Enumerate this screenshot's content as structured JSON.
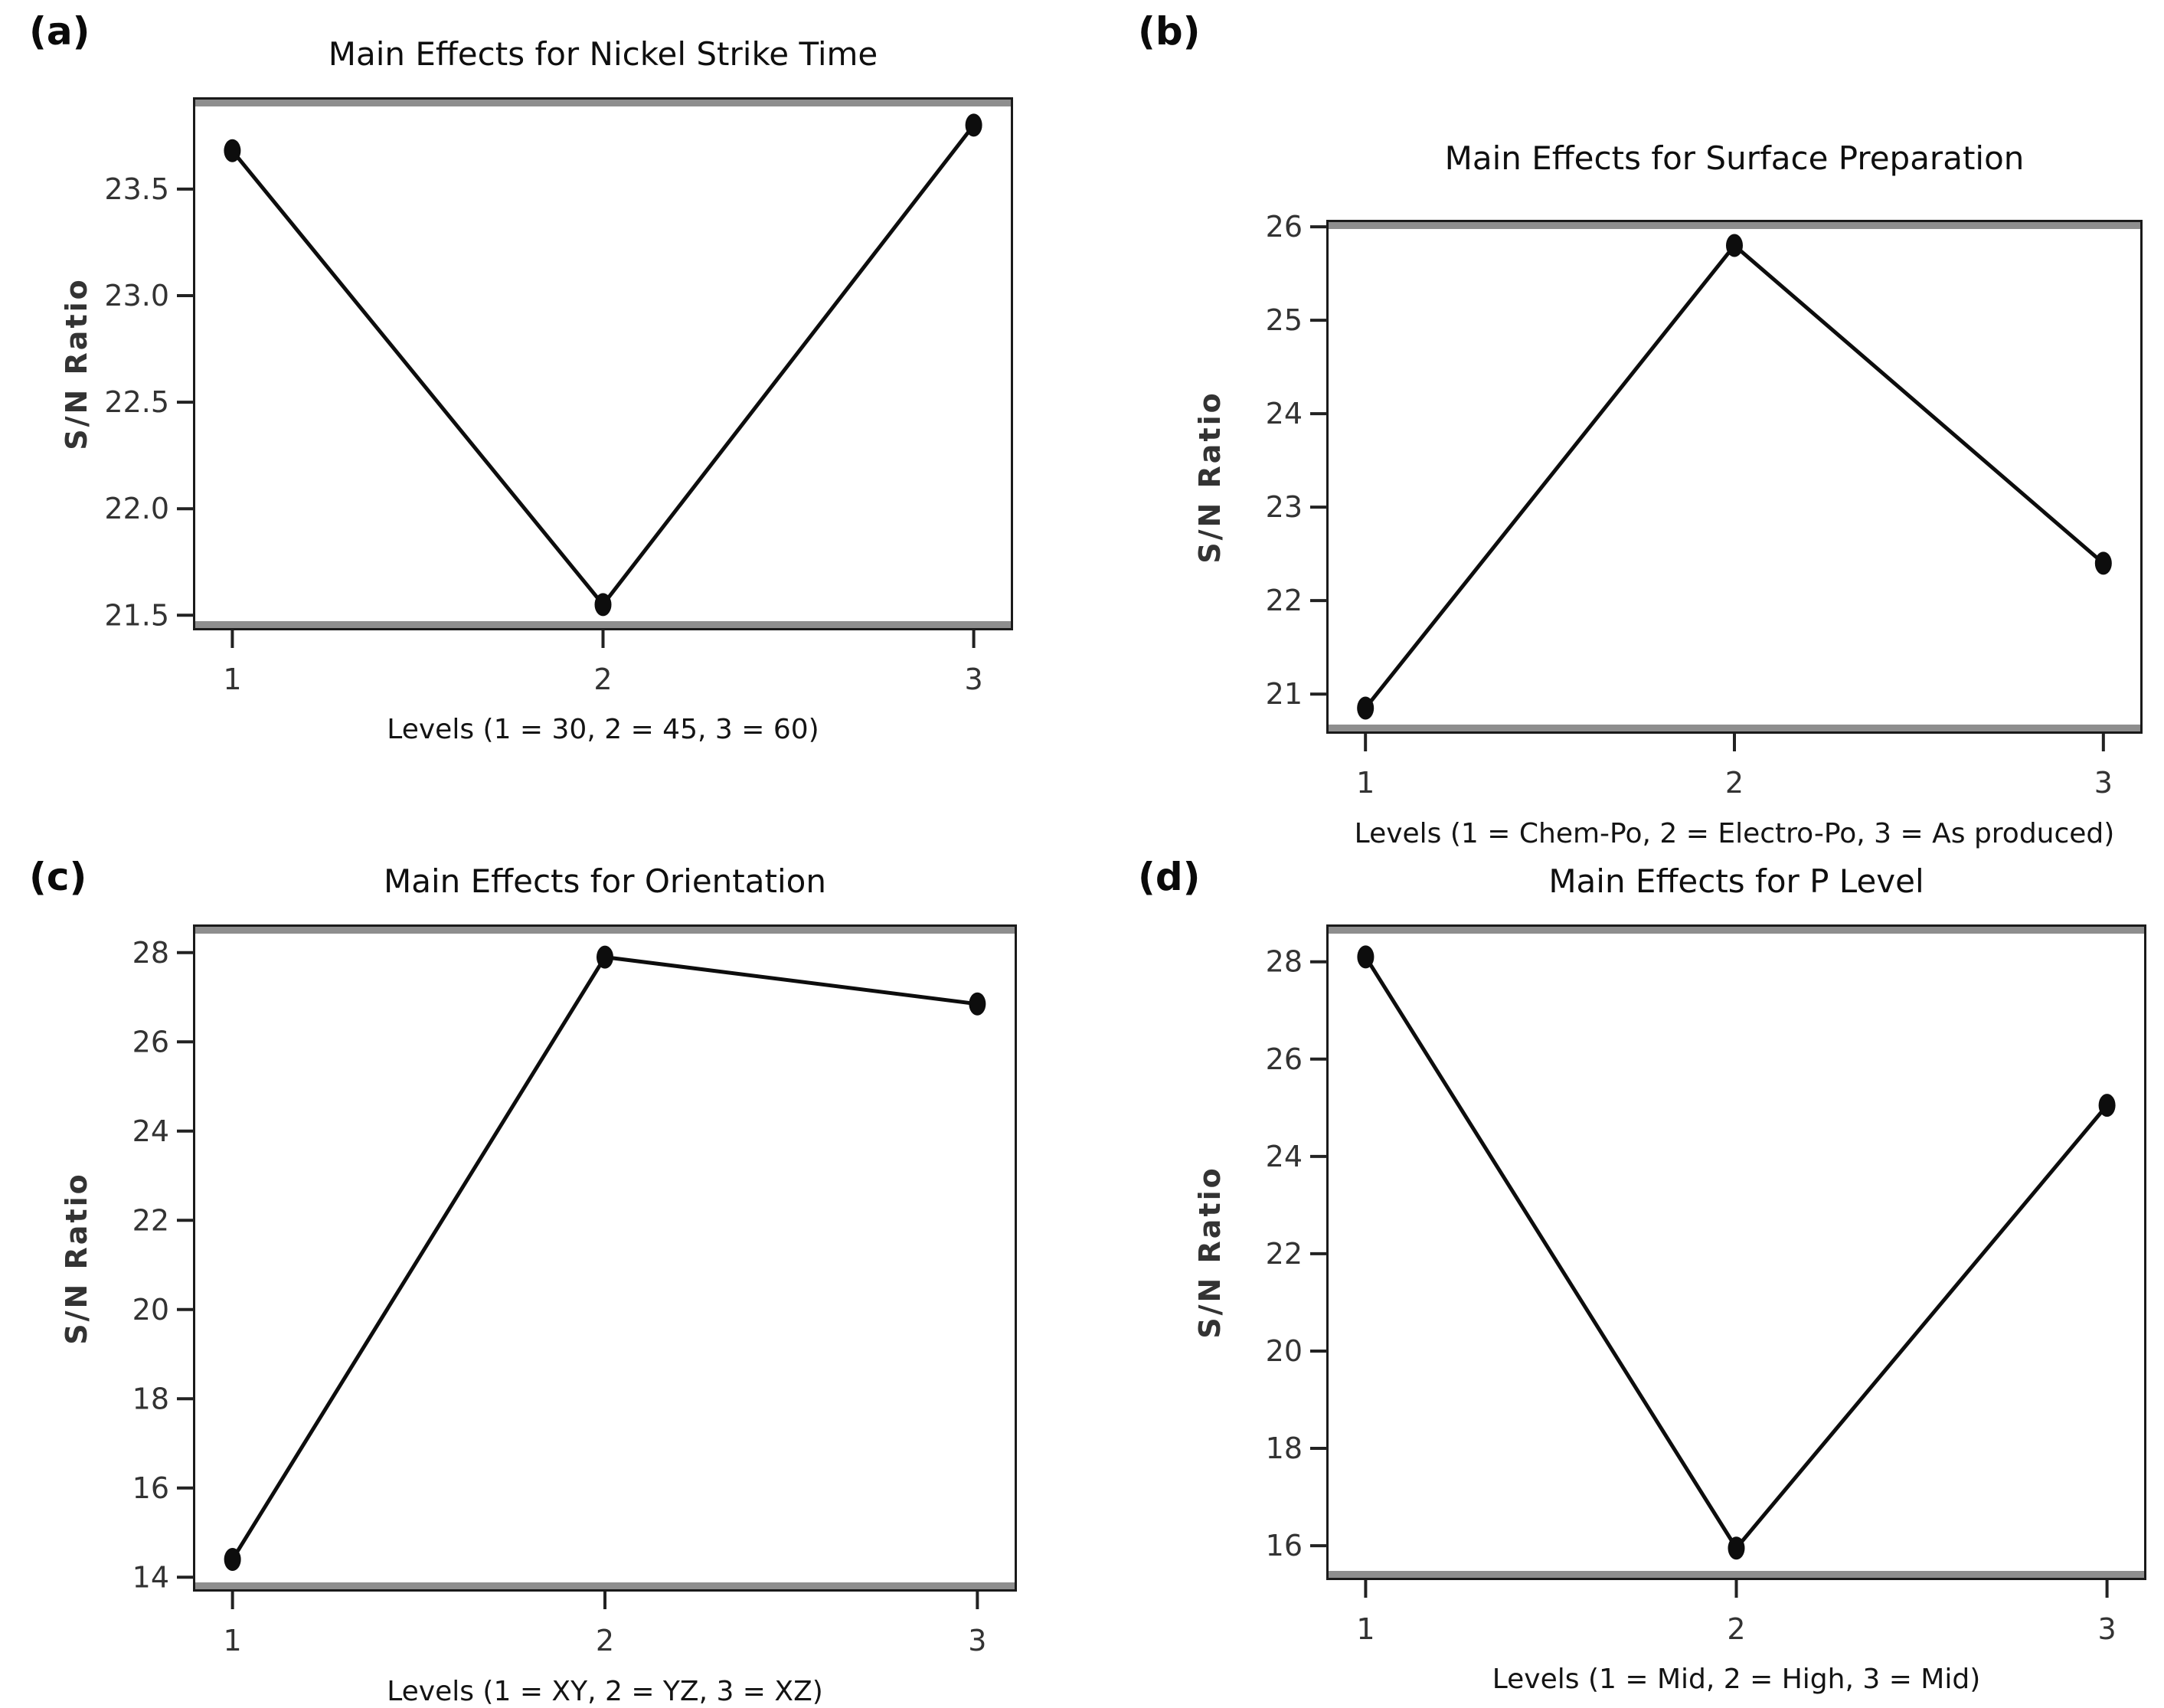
{
  "figure": {
    "panel_count": 4,
    "background_color": "#ffffff",
    "line_color": "#0d0d0d",
    "spine_gray": "#8e8e8e"
  },
  "chart_data": [
    {
      "panel_label": "(a)",
      "type": "line",
      "title": "Main Effects for Nickel Strike Time",
      "xlabel": "Levels (1 = 30, 2 = 45, 3 = 60)",
      "ylabel": "S/N Ratio",
      "x": [
        1,
        2,
        3
      ],
      "values": [
        23.68,
        21.55,
        23.8
      ],
      "xtick_labels": [
        "1",
        "2",
        "3"
      ],
      "ytick_values": [
        21.5,
        22.0,
        22.5,
        23.0,
        23.5
      ],
      "ytick_labels": [
        "21.5",
        "22.0",
        "22.5",
        "23.0",
        "23.5"
      ],
      "xlim": [
        0.9,
        3.1
      ],
      "ylim": [
        21.44,
        23.92
      ],
      "marker": "filled-circle",
      "line_color": "#0d0d0d",
      "grid": false,
      "legend": "none"
    },
    {
      "panel_label": "(b)",
      "type": "line",
      "title": "Main Effects for Surface Preparation",
      "xlabel": "Levels (1 = Chem-Po, 2 = Electro-Po, 3 = As produced)",
      "ylabel": "S/N Ratio",
      "x": [
        1,
        2,
        3
      ],
      "values": [
        20.85,
        25.8,
        22.4
      ],
      "xtick_labels": [
        "1",
        "2",
        "3"
      ],
      "ytick_values": [
        21,
        22,
        23,
        24,
        25,
        26
      ],
      "ytick_labels": [
        "21",
        "22",
        "23",
        "24",
        "25",
        "26"
      ],
      "xlim": [
        0.9,
        3.1
      ],
      "ylim": [
        20.6,
        26.05
      ],
      "marker": "filled-circle",
      "line_color": "#0d0d0d",
      "grid": false,
      "legend": "none"
    },
    {
      "panel_label": "(c)",
      "type": "line",
      "title": "Main Effects for Orientation",
      "xlabel": "Levels (1 = XY, 2 = YZ, 3 = XZ)",
      "ylabel": "S/N Ratio",
      "x": [
        1,
        2,
        3
      ],
      "values": [
        14.4,
        27.9,
        26.85
      ],
      "xtick_labels": [
        "1",
        "2",
        "3"
      ],
      "ytick_values": [
        14,
        16,
        18,
        20,
        22,
        24,
        26,
        28
      ],
      "ytick_labels": [
        "14",
        "16",
        "18",
        "20",
        "22",
        "24",
        "26",
        "28"
      ],
      "xlim": [
        0.9,
        3.1
      ],
      "ylim": [
        13.73,
        28.58
      ],
      "marker": "filled-circle",
      "line_color": "#0d0d0d",
      "grid": false,
      "legend": "none"
    },
    {
      "panel_label": "(d)",
      "type": "line",
      "title": "Main Effects for P Level",
      "xlabel": "Levels (1 = Mid, 2 = High, 3 = Mid)",
      "ylabel": "S/N Ratio",
      "x": [
        1,
        2,
        3
      ],
      "values": [
        28.1,
        15.95,
        25.05
      ],
      "xtick_labels": [
        "1",
        "2",
        "3"
      ],
      "ytick_values": [
        16,
        18,
        20,
        22,
        24,
        26,
        28
      ],
      "ytick_labels": [
        "16",
        "18",
        "20",
        "22",
        "24",
        "26",
        "28"
      ],
      "xlim": [
        0.9,
        3.1
      ],
      "ylim": [
        15.34,
        28.72
      ],
      "marker": "filled-circle",
      "line_color": "#0d0d0d",
      "grid": false,
      "legend": "none"
    }
  ]
}
